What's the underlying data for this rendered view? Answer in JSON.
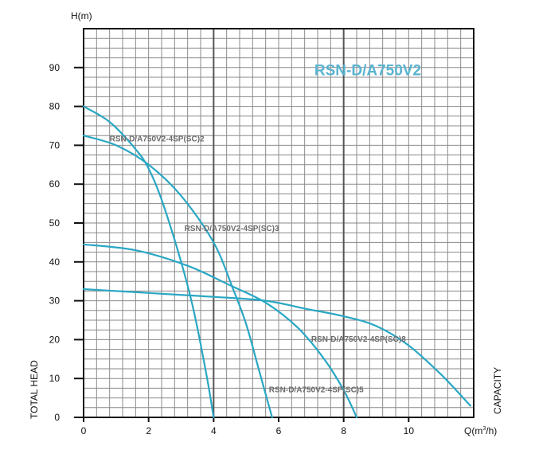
{
  "chart_data": {
    "type": "line",
    "title": "RSN-D/A750V2",
    "ylabel_top": "H(m)",
    "xlabel": "Q(m³/h)",
    "xlabel_base": "Q(m",
    "xlabel_sup": "3",
    "xlabel_end": "/h)",
    "ylabel_side": "TOTAL HEAD",
    "xlabel_side": "CAPACITY",
    "xlim": [
      0,
      12
    ],
    "ylim": [
      0,
      100
    ],
    "x_ticks": [
      0,
      2,
      4,
      6,
      8,
      10
    ],
    "y_ticks": [
      0,
      10,
      20,
      30,
      40,
      50,
      60,
      70,
      80,
      90
    ],
    "x_minor_step": 0.4,
    "y_minor_step": 2.5,
    "major_vlines": [
      4,
      8
    ],
    "colors": {
      "curve": "#2aa7c4",
      "grid": "#8a8a8a",
      "major_grid": "#555555",
      "axis": "#111111",
      "title": "#5ab4d0",
      "label": "#6b6b6b"
    },
    "series": [
      {
        "name": "RSN-D/A750V2-4SP(SC)2",
        "x": [
          0,
          0.8,
          1.6,
          2.0,
          2.4,
          3.0,
          3.4,
          3.8,
          4.0
        ],
        "y": [
          80,
          76,
          69,
          64,
          56,
          40,
          27,
          10,
          0
        ]
      },
      {
        "name": "RSN-D/A750V2-4SP(SC)3",
        "x": [
          0,
          1.0,
          2.0,
          3.0,
          4.0,
          4.6,
          5.0,
          5.4,
          5.8
        ],
        "y": [
          72.5,
          70,
          65,
          57,
          45,
          33,
          24,
          12,
          0
        ]
      },
      {
        "name": "RSN-D/A750V2-4SP(SC)5",
        "x": [
          0,
          1.6,
          3.2,
          4.5,
          5.6,
          6.6,
          7.4,
          8.0,
          8.4
        ],
        "y": [
          44.5,
          43,
          39,
          34,
          29.5,
          23,
          15,
          7,
          0
        ]
      },
      {
        "name": "RSN-D/A750V2-4SP(SC)8",
        "x": [
          0,
          2.0,
          4.0,
          5.6,
          6.8,
          8.0,
          9.0,
          10.0,
          11.0,
          11.9
        ],
        "y": [
          33,
          32,
          31,
          30,
          28,
          26,
          23.5,
          18.5,
          11,
          3
        ]
      }
    ],
    "curve_labels": [
      {
        "text": "RSN-D/A750V2-4SP(SC)2",
        "x": 0.8,
        "y": 71
      },
      {
        "text": "RSN-D/A750V2-4SP(SC)3",
        "x": 3.1,
        "y": 48
      },
      {
        "text": "RSN-D/A750V2-4SP(SC)5",
        "x": 5.7,
        "y": 6.5
      },
      {
        "text": "RSN-D/A750V2-4SP(SC)8",
        "x": 7.0,
        "y": 19.5
      }
    ],
    "title_position": {
      "x": 7.1,
      "y": 88
    }
  }
}
